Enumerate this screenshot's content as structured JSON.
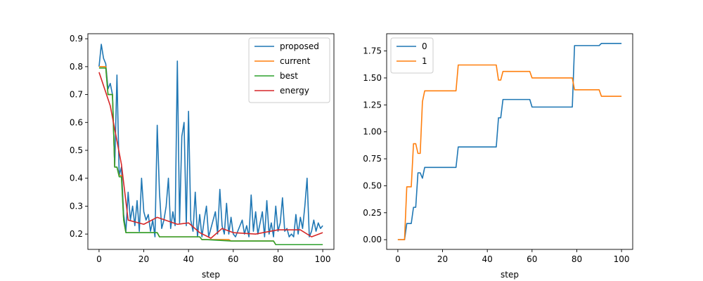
{
  "chart_data": [
    {
      "type": "line",
      "title": "",
      "xlabel": "step",
      "ylabel": "",
      "xlim": [
        -5,
        105
      ],
      "ylim": [
        0.145,
        0.918
      ],
      "xticks": [
        0,
        20,
        40,
        60,
        80,
        100
      ],
      "yticks": [
        0.2,
        0.3,
        0.4,
        0.5,
        0.6,
        0.7,
        0.8,
        0.9
      ],
      "ytick_decimals": 1,
      "legend": "upper-right",
      "series": [
        {
          "name": "proposed",
          "color": "#1f77b4",
          "x": [
            0,
            1,
            2,
            3,
            4,
            5,
            6,
            7,
            8,
            9,
            10,
            11,
            12,
            13,
            14,
            15,
            16,
            17,
            18,
            19,
            20,
            21,
            22,
            23,
            24,
            25,
            26,
            27,
            28,
            29,
            30,
            31,
            32,
            33,
            34,
            35,
            36,
            37,
            38,
            39,
            40,
            41,
            42,
            43,
            44,
            45,
            46,
            47,
            48,
            49,
            50,
            51,
            52,
            53,
            54,
            55,
            56,
            57,
            58,
            59,
            60,
            61,
            62,
            63,
            64,
            65,
            66,
            67,
            68,
            69,
            70,
            71,
            72,
            73,
            74,
            75,
            76,
            77,
            78,
            79,
            80,
            81,
            82,
            83,
            84,
            85,
            86,
            87,
            88,
            89,
            90,
            91,
            92,
            93,
            94,
            95,
            96,
            97,
            98,
            99,
            100
          ],
          "values": [
            0.8,
            0.88,
            0.83,
            0.81,
            0.72,
            0.74,
            0.7,
            0.44,
            0.77,
            0.41,
            0.44,
            0.27,
            0.21,
            0.35,
            0.25,
            0.3,
            0.23,
            0.32,
            0.21,
            0.4,
            0.28,
            0.25,
            0.27,
            0.21,
            0.25,
            0.19,
            0.59,
            0.35,
            0.22,
            0.25,
            0.3,
            0.4,
            0.22,
            0.28,
            0.23,
            0.82,
            0.24,
            0.55,
            0.6,
            0.23,
            0.64,
            0.25,
            0.21,
            0.35,
            0.19,
            0.27,
            0.19,
            0.25,
            0.3,
            0.19,
            0.22,
            0.25,
            0.28,
            0.2,
            0.36,
            0.23,
            0.2,
            0.31,
            0.2,
            0.26,
            0.2,
            0.19,
            0.21,
            0.23,
            0.25,
            0.2,
            0.23,
            0.19,
            0.34,
            0.21,
            0.28,
            0.2,
            0.24,
            0.28,
            0.19,
            0.32,
            0.2,
            0.24,
            0.19,
            0.3,
            0.21,
            0.24,
            0.33,
            0.21,
            0.22,
            0.19,
            0.2,
            0.19,
            0.27,
            0.2,
            0.26,
            0.22,
            0.3,
            0.4,
            0.19,
            0.21,
            0.25,
            0.21,
            0.24,
            0.22,
            0.23
          ]
        },
        {
          "name": "current",
          "color": "#ff7f0e",
          "x": [
            0,
            1,
            2,
            3,
            4,
            5,
            6,
            7,
            8,
            9,
            10,
            11,
            12,
            26,
            27,
            44,
            45,
            46,
            47,
            48,
            49,
            50,
            51,
            52,
            53,
            54,
            55,
            56,
            57,
            58,
            59,
            60,
            61,
            62,
            63,
            64,
            65,
            66,
            67,
            68,
            69,
            70,
            71,
            72,
            73,
            74,
            75,
            76,
            77,
            78,
            79,
            80,
            81,
            82,
            83,
            84,
            85,
            86,
            87,
            88,
            89,
            90,
            91,
            92,
            93,
            94,
            95,
            96,
            97,
            98,
            99,
            100
          ],
          "values": [
            0.8,
            0.8,
            0.8,
            0.8,
            0.7,
            0.7,
            0.7,
            0.44,
            0.44,
            0.41,
            0.41,
            0.25,
            0.205,
            0.205,
            0.19,
            0.19,
            0.19,
            0.18,
            0.18,
            0.18,
            0.18,
            0.18,
            0.18,
            0.18,
            0.18,
            0.18,
            0.18,
            0.18,
            0.18,
            0.18,
            0.175,
            0.175,
            0.175,
            0.175,
            0.175,
            0.175,
            0.175,
            0.175,
            0.175,
            0.175,
            0.175,
            0.175,
            0.175,
            0.175,
            0.175,
            0.175,
            0.175,
            0.175,
            0.175,
            0.175,
            0.162,
            0.162,
            0.162,
            0.162,
            0.162,
            0.162,
            0.162,
            0.162,
            0.162,
            0.162,
            0.162,
            0.162,
            0.162,
            0.162,
            0.162,
            0.162,
            0.162,
            0.162,
            0.162,
            0.162,
            0.162,
            0.162
          ]
        },
        {
          "name": "best",
          "color": "#2ca02c",
          "x": [
            0,
            3,
            4,
            6,
            7,
            8,
            9,
            10,
            11,
            12,
            26,
            27,
            44,
            45,
            46,
            47,
            48,
            59,
            60,
            78,
            79,
            100
          ],
          "values": [
            0.795,
            0.795,
            0.7,
            0.7,
            0.44,
            0.44,
            0.405,
            0.405,
            0.25,
            0.205,
            0.205,
            0.19,
            0.19,
            0.19,
            0.18,
            0.18,
            0.18,
            0.175,
            0.175,
            0.175,
            0.162,
            0.162
          ]
        },
        {
          "name": "energy",
          "color": "#d62728",
          "x": [
            0,
            5,
            10,
            13,
            20,
            26,
            35,
            40,
            45,
            50,
            55,
            60,
            70,
            80,
            90,
            95,
            100
          ],
          "values": [
            0.78,
            0.66,
            0.45,
            0.25,
            0.235,
            0.26,
            0.235,
            0.24,
            0.205,
            0.185,
            0.22,
            0.205,
            0.2,
            0.215,
            0.215,
            0.19,
            0.205
          ]
        }
      ]
    },
    {
      "type": "line",
      "title": "",
      "xlabel": "step",
      "ylabel": "",
      "xlim": [
        -5,
        105
      ],
      "ylim": [
        -0.09,
        1.91
      ],
      "xticks": [
        0,
        20,
        40,
        60,
        80,
        100
      ],
      "yticks": [
        0.0,
        0.25,
        0.5,
        0.75,
        1.0,
        1.25,
        1.5,
        1.75
      ],
      "ytick_decimals": 2,
      "legend": "upper-left",
      "series": [
        {
          "name": "0",
          "color": "#1f77b4",
          "x": [
            0,
            3,
            4,
            6,
            7,
            8,
            9,
            10,
            11,
            12,
            26,
            27,
            44,
            45,
            46,
            47,
            48,
            59,
            60,
            78,
            79,
            90,
            91,
            100
          ],
          "values": [
            0.0,
            0.0,
            0.15,
            0.15,
            0.3,
            0.3,
            0.62,
            0.62,
            0.57,
            0.67,
            0.67,
            0.86,
            0.86,
            1.13,
            1.13,
            1.3,
            1.3,
            1.3,
            1.23,
            1.23,
            1.8,
            1.8,
            1.82,
            1.82
          ]
        },
        {
          "name": "1",
          "color": "#ff7f0e",
          "x": [
            0,
            3,
            4,
            6,
            7,
            8,
            9,
            10,
            11,
            12,
            26,
            27,
            44,
            45,
            46,
            47,
            48,
            59,
            60,
            78,
            79,
            90,
            91,
            100
          ],
          "values": [
            0.0,
            0.0,
            0.49,
            0.49,
            0.89,
            0.89,
            0.8,
            0.8,
            1.28,
            1.38,
            1.38,
            1.62,
            1.62,
            1.48,
            1.48,
            1.56,
            1.56,
            1.56,
            1.5,
            1.5,
            1.39,
            1.39,
            1.33,
            1.33
          ]
        }
      ]
    }
  ]
}
